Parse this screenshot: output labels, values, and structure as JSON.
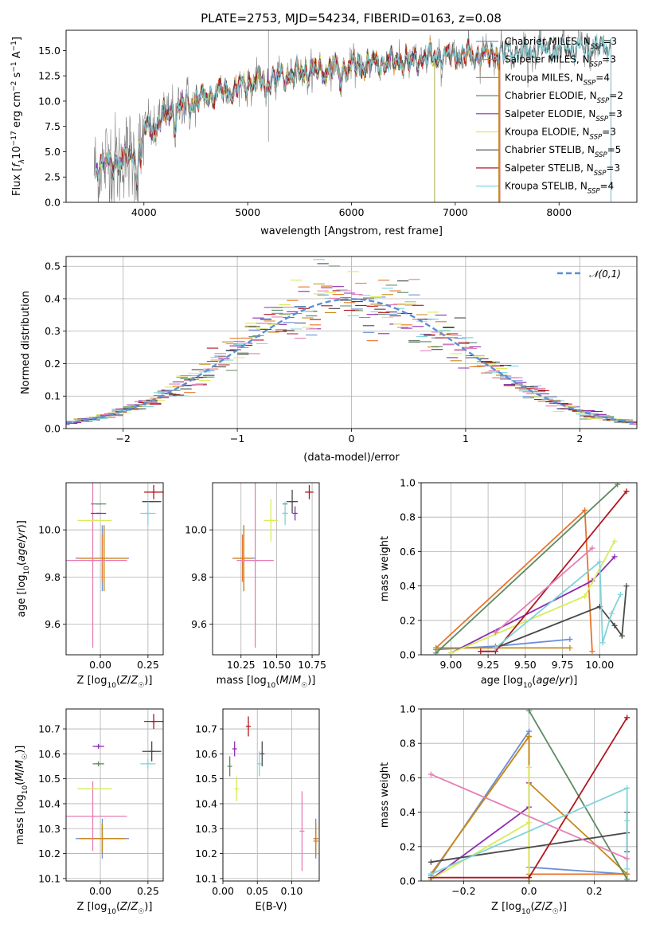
{
  "colors": {
    "Chabrier MILES": "#6a8fd8",
    "Salpeter MILES": "#e8742a",
    "Kroupa MILES": "#c68a1a",
    "Chabrier ELODIE": "#5e8a62",
    "Salpeter ELODIE": "#8c2db0",
    "Kroupa ELODIE": "#d8ec5a",
    "Chabrier STELIB": "#4a4a4a",
    "Salpeter STELIB": "#b0161e",
    "Kroupa STELIB": "#7fd4dc",
    "Data": "#808080",
    "Pink": "#e47fb5",
    "Normal": "#5a8fd6",
    "grid": "#b0b0b0"
  },
  "chart_data": [
    {
      "id": "spectrum",
      "type": "line",
      "title": "PLATE=2753, MJD=54234, FIBERID=0163, z=0.08",
      "xlabel": "wavelength [Angstrom, rest frame]",
      "ylabel": "Flux [fλ10⁻¹⁷ erg cm⁻² s⁻¹ A⁻¹]",
      "xlim": [
        3250,
        8750
      ],
      "ylim": [
        0,
        17
      ],
      "xticks": [
        4000,
        5000,
        6000,
        7000,
        8000
      ],
      "yticks": [
        0.0,
        2.5,
        5.0,
        7.5,
        10.0,
        12.5,
        15.0
      ],
      "continuum": {
        "x": [
          3500,
          3900,
          4000,
          4300,
          4700,
          5000,
          5500,
          6000,
          6500,
          7000,
          7500,
          8000,
          8500
        ],
        "y": [
          3.5,
          4.5,
          7.0,
          9.2,
          10.8,
          11.7,
          12.8,
          13.4,
          14.0,
          14.5,
          14.8,
          15.1,
          15.3
        ]
      },
      "legend": [
        {
          "label": "Chabrier MILES, N",
          "sub": "SSP",
          "tail": "=3"
        },
        {
          "label": "Salpeter MILES, N",
          "sub": "SSP",
          "tail": "=3"
        },
        {
          "label": "Kroupa MILES, N",
          "sub": "SSP",
          "tail": "=4"
        },
        {
          "label": "Chabrier ELODIE, N",
          "sub": "SSP",
          "tail": "=2"
        },
        {
          "label": "Salpeter ELODIE, N",
          "sub": "SSP",
          "tail": "=3"
        },
        {
          "label": "Kroupa ELODIE, N",
          "sub": "SSP",
          "tail": "=3"
        },
        {
          "label": "Chabrier STELIB, N",
          "sub": "SSP",
          "tail": "=5"
        },
        {
          "label": "Salpeter STELIB, N",
          "sub": "SSP",
          "tail": "=3"
        },
        {
          "label": "Kroupa STELIB, N",
          "sub": "SSP",
          "tail": "=4"
        }
      ],
      "legend_position": "right"
    },
    {
      "id": "residuals",
      "type": "histogram",
      "xlabel": "(data-model)/error",
      "ylabel": "Normed distribution",
      "xlim": [
        -2.5,
        2.5
      ],
      "ylim": [
        0,
        0.53
      ],
      "xticks": [
        -2,
        -1,
        0,
        1,
        2
      ],
      "xticklabels": [
        "−2",
        "−1",
        "0",
        "1",
        "2"
      ],
      "yticks": [
        0.0,
        0.1,
        0.2,
        0.3,
        0.4,
        0.5
      ],
      "bin_width": 0.1,
      "legend": "𝒩(0,1)",
      "legend_position": "upper right"
    },
    {
      "id": "age_vs_Z",
      "type": "errorbar",
      "xlabel": "Z [log₁₀(Z/Z☉)]",
      "ylabel": "age  [log₁₀(age/yr)]",
      "xlim": [
        -0.18,
        0.33
      ],
      "ylim": [
        9.47,
        10.2
      ],
      "xticks": [
        0.0,
        0.25
      ],
      "yticks": [
        9.6,
        9.8,
        10.0
      ],
      "points": [
        {
          "model": "Chabrier MILES",
          "x": 0.01,
          "xerr": 0.14,
          "y": 9.88,
          "yerr": 0.14
        },
        {
          "model": "Salpeter MILES",
          "x": 0.01,
          "xerr": 0.13,
          "y": 9.88,
          "yerr": 0.1
        },
        {
          "model": "Kroupa MILES",
          "x": 0.02,
          "xerr": 0.12,
          "y": 9.88,
          "yerr": 0.14
        },
        {
          "model": "Pink",
          "x": -0.04,
          "xerr": 0.18,
          "y": 9.87,
          "yerr": 0.37
        },
        {
          "model": "Kroupa ELODIE",
          "x": -0.03,
          "xerr": 0.09,
          "y": 10.04,
          "yerr": 0.0
        },
        {
          "model": "Salpeter ELODIE",
          "x": -0.01,
          "xerr": 0.04,
          "y": 10.07,
          "yerr": 0.0
        },
        {
          "model": "Chabrier ELODIE",
          "x": -0.01,
          "xerr": 0.04,
          "y": 10.11,
          "yerr": 0.0
        },
        {
          "model": "Chabrier STELIB",
          "x": 0.27,
          "xerr": 0.05,
          "y": 10.12,
          "yerr": 0.0
        },
        {
          "model": "Kroupa STELIB",
          "x": 0.25,
          "xerr": 0.04,
          "y": 10.07,
          "yerr": 0.05
        },
        {
          "model": "Salpeter STELIB",
          "x": 0.28,
          "xerr": 0.05,
          "y": 10.16,
          "yerr": 0.03
        }
      ]
    },
    {
      "id": "age_vs_mass",
      "type": "errorbar",
      "xlabel": "mass [log₁₀(M/M☉)]",
      "xlim": [
        10.05,
        10.8
      ],
      "ylim": [
        9.47,
        10.2
      ],
      "xticks": [
        10.25,
        10.5,
        10.75
      ],
      "yticks": [
        9.6,
        9.8,
        10.0
      ],
      "points": [
        {
          "model": "Chabrier MILES",
          "x": 10.27,
          "xerr": 0.08,
          "y": 9.88,
          "yerr": 0.14
        },
        {
          "model": "Salpeter MILES",
          "x": 10.26,
          "xerr": 0.07,
          "y": 9.88,
          "yerr": 0.1
        },
        {
          "model": "Kroupa MILES",
          "x": 10.27,
          "xerr": 0.06,
          "y": 9.88,
          "yerr": 0.14
        },
        {
          "model": "Pink",
          "x": 10.35,
          "xerr": 0.13,
          "y": 9.87,
          "yerr": 0.37
        },
        {
          "model": "Kroupa ELODIE",
          "x": 10.46,
          "xerr": 0.05,
          "y": 10.04,
          "yerr": 0.09
        },
        {
          "model": "Salpeter ELODIE",
          "x": 10.63,
          "xerr": 0.0,
          "y": 10.07,
          "yerr": 0.03
        },
        {
          "model": "Chabrier ELODIE",
          "x": 10.56,
          "xerr": 0.0,
          "y": 10.11,
          "yerr": 0.0
        },
        {
          "model": "Chabrier STELIB",
          "x": 10.61,
          "xerr": 0.04,
          "y": 10.12,
          "yerr": 0.05
        },
        {
          "model": "Kroupa STELIB",
          "x": 10.56,
          "xerr": 0.02,
          "y": 10.07,
          "yerr": 0.05
        },
        {
          "model": "Salpeter STELIB",
          "x": 10.73,
          "xerr": 0.03,
          "y": 10.16,
          "yerr": 0.03
        }
      ]
    },
    {
      "id": "weight_vs_age",
      "type": "line",
      "xlabel": "age  [log₁₀(age/yr)]",
      "ylabel": "mass weight",
      "xlim": [
        8.8,
        10.25
      ],
      "ylim": [
        0,
        1
      ],
      "xticks": [
        9.0,
        9.25,
        9.5,
        9.75,
        10.0
      ],
      "yticks": [
        0.0,
        0.2,
        0.4,
        0.6,
        0.8,
        1.0
      ],
      "series": [
        {
          "model": "Chabrier MILES",
          "x": [
            8.9,
            9.3,
            9.8
          ],
          "y": [
            0.03,
            0.05,
            0.09
          ]
        },
        {
          "model": "Salpeter MILES",
          "x": [
            8.9,
            9.9,
            9.95
          ],
          "y": [
            0.04,
            0.84,
            0.02
          ]
        },
        {
          "model": "Kroupa MILES",
          "x": [
            8.9,
            9.8
          ],
          "y": [
            0.04,
            0.04
          ]
        },
        {
          "model": "Chabrier ELODIE",
          "x": [
            8.9,
            10.12
          ],
          "y": [
            0.01,
            0.99
          ]
        },
        {
          "model": "Salpeter ELODIE",
          "x": [
            9.0,
            9.95,
            10.1
          ],
          "y": [
            0.01,
            0.43,
            0.57
          ]
        },
        {
          "model": "Kroupa ELODIE",
          "x": [
            9.0,
            9.9,
            10.1
          ],
          "y": [
            0.01,
            0.34,
            0.66
          ]
        },
        {
          "model": "Chabrier STELIB",
          "x": [
            9.3,
            10.0,
            10.1,
            10.15,
            10.18
          ],
          "y": [
            0.04,
            0.28,
            0.17,
            0.11,
            0.4
          ]
        },
        {
          "model": "Salpeter STELIB",
          "x": [
            9.2,
            9.3,
            10.18
          ],
          "y": [
            0.02,
            0.02,
            0.95
          ]
        },
        {
          "model": "Kroupa STELIB",
          "x": [
            9.3,
            10.0,
            10.02,
            10.08,
            10.14
          ],
          "y": [
            0.04,
            0.54,
            0.07,
            0.24,
            0.35
          ]
        },
        {
          "model": "Pink",
          "x": [
            9.3,
            9.95
          ],
          "y": [
            0.13,
            0.62
          ]
        }
      ]
    },
    {
      "id": "mass_vs_Z",
      "type": "errorbar",
      "xlabel": "Z [log₁₀(Z/Z☉)]",
      "ylabel": "mass [log₁₀(M/M☉)]",
      "xlim": [
        -0.18,
        0.33
      ],
      "ylim": [
        10.09,
        10.78
      ],
      "xticks": [
        0.0,
        0.25
      ],
      "yticks": [
        10.1,
        10.2,
        10.3,
        10.4,
        10.5,
        10.6,
        10.7
      ],
      "points": [
        {
          "model": "Chabrier MILES",
          "x": 0.01,
          "xerr": 0.14,
          "y": 10.26,
          "yerr": 0.08
        },
        {
          "model": "Salpeter MILES",
          "x": 0.01,
          "xerr": 0.12,
          "y": 10.26,
          "yerr": 0.06
        },
        {
          "model": "Kroupa MILES",
          "x": 0.01,
          "xerr": 0.12,
          "y": 10.26,
          "yerr": 0.06
        },
        {
          "model": "Pink",
          "x": -0.04,
          "xerr": 0.18,
          "y": 10.35,
          "yerr": 0.14
        },
        {
          "model": "Kroupa ELODIE",
          "x": -0.03,
          "xerr": 0.09,
          "y": 10.46,
          "yerr": 0.0
        },
        {
          "model": "Salpeter ELODIE",
          "x": -0.01,
          "xerr": 0.03,
          "y": 10.63,
          "yerr": 0.01
        },
        {
          "model": "Chabrier ELODIE",
          "x": -0.01,
          "xerr": 0.03,
          "y": 10.56,
          "yerr": 0.01
        },
        {
          "model": "Chabrier STELIB",
          "x": 0.27,
          "xerr": 0.05,
          "y": 10.61,
          "yerr": 0.04
        },
        {
          "model": "Kroupa STELIB",
          "x": 0.25,
          "xerr": 0.04,
          "y": 10.56,
          "yerr": 0.02
        },
        {
          "model": "Salpeter STELIB",
          "x": 0.28,
          "xerr": 0.05,
          "y": 10.73,
          "yerr": 0.03
        }
      ]
    },
    {
      "id": "mass_vs_ebv",
      "type": "errorbar",
      "xlabel": "E(B-V)",
      "xlim": [
        0.0,
        0.14
      ],
      "ylim": [
        10.09,
        10.78
      ],
      "xticks": [
        0.0,
        0.05,
        0.1
      ],
      "xticklabels": [
        "0.00",
        "0.05",
        "0.10"
      ],
      "yticks": [
        10.1,
        10.2,
        10.3,
        10.4,
        10.5,
        10.6,
        10.7
      ],
      "points": [
        {
          "model": "Chabrier MILES",
          "x": 0.135,
          "xerr": 0.0,
          "y": 10.26,
          "yerr": 0.08
        },
        {
          "model": "Salpeter MILES",
          "x": 0.135,
          "xerr": 0.0,
          "y": 10.25,
          "yerr": 0.06
        },
        {
          "model": "Kroupa MILES",
          "x": 0.135,
          "xerr": 0.0,
          "y": 10.26,
          "yerr": 0.06
        },
        {
          "model": "Pink",
          "x": 0.115,
          "xerr": 0.0,
          "y": 10.29,
          "yerr": 0.16
        },
        {
          "model": "Kroupa ELODIE",
          "x": 0.02,
          "xerr": 0.0,
          "y": 10.46,
          "yerr": 0.05
        },
        {
          "model": "Salpeter ELODIE",
          "x": 0.017,
          "xerr": 0.0,
          "y": 10.62,
          "yerr": 0.03
        },
        {
          "model": "Chabrier ELODIE",
          "x": 0.01,
          "xerr": 0.0,
          "y": 10.55,
          "yerr": 0.04
        },
        {
          "model": "Chabrier STELIB",
          "x": 0.057,
          "xerr": 0.0,
          "y": 10.6,
          "yerr": 0.05
        },
        {
          "model": "Kroupa STELIB",
          "x": 0.053,
          "xerr": 0.0,
          "y": 10.56,
          "yerr": 0.05
        },
        {
          "model": "Salpeter STELIB",
          "x": 0.037,
          "xerr": 0.0,
          "y": 10.71,
          "yerr": 0.04
        }
      ]
    },
    {
      "id": "weight_vs_Z",
      "type": "line",
      "xlabel": "Z [log₁₀(Z/Z☉)]",
      "ylabel": "mass weight",
      "xlim": [
        -0.33,
        0.33
      ],
      "ylim": [
        0,
        1
      ],
      "xticks": [
        -0.2,
        0.0,
        0.2
      ],
      "xticklabels": [
        "−0.2",
        "0.0",
        "0.2"
      ],
      "yticks": [
        0.0,
        0.2,
        0.4,
        0.6,
        0.8,
        1.0
      ],
      "series": [
        {
          "model": "Chabrier MILES",
          "x": [
            -0.3,
            0.0,
            0.0,
            0.3
          ],
          "y": [
            0.03,
            0.87,
            0.08,
            0.04
          ]
        },
        {
          "model": "Salpeter MILES",
          "x": [
            -0.3,
            0.0,
            0.0,
            0.3
          ],
          "y": [
            0.04,
            0.84,
            0.04,
            0.04
          ]
        },
        {
          "model": "Kroupa MILES",
          "x": [
            -0.3,
            0.0,
            0.0,
            0.3
          ],
          "y": [
            0.04,
            0.84,
            0.57,
            0.04
          ]
        },
        {
          "model": "Chabrier ELODIE",
          "x": [
            0.0,
            0.3
          ],
          "y": [
            0.99,
            0.01
          ]
        },
        {
          "model": "Salpeter ELODIE",
          "x": [
            -0.3,
            0.0,
            0.0
          ],
          "y": [
            0.01,
            0.43,
            0.57
          ]
        },
        {
          "model": "Kroupa ELODIE",
          "x": [
            -0.3,
            0.0,
            0.0,
            0.0
          ],
          "y": [
            0.01,
            0.34,
            0.66,
            0.0
          ]
        },
        {
          "model": "Chabrier STELIB",
          "x": [
            -0.3,
            0.3,
            0.3,
            0.3
          ],
          "y": [
            0.11,
            0.28,
            0.17,
            0.4
          ]
        },
        {
          "model": "Salpeter STELIB",
          "x": [
            -0.3,
            0.0,
            0.3
          ],
          "y": [
            0.02,
            0.02,
            0.95
          ]
        },
        {
          "model": "Kroupa STELIB",
          "x": [
            -0.3,
            0.3,
            0.3,
            0.3
          ],
          "y": [
            0.04,
            0.54,
            0.07,
            0.35
          ]
        },
        {
          "model": "Pink",
          "x": [
            -0.3,
            0.3
          ],
          "y": [
            0.62,
            0.13
          ]
        }
      ]
    }
  ]
}
